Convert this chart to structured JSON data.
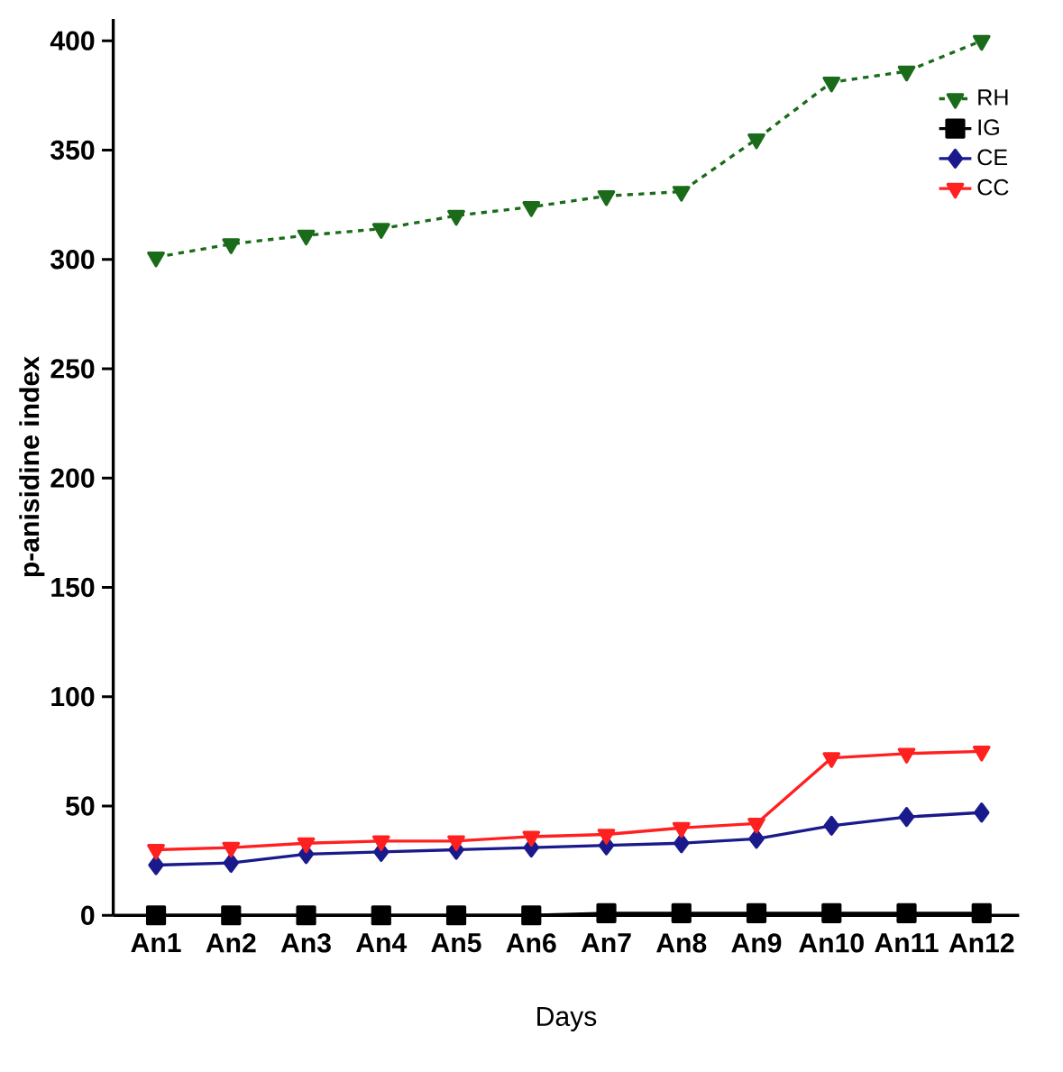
{
  "chart_data": {
    "type": "line",
    "xlabel": "Days",
    "ylabel": "p-anisidine index",
    "categories": [
      "An1",
      "An2",
      "An3",
      "An4",
      "An5",
      "An6",
      "An7",
      "An8",
      "An9",
      "An10",
      "An11",
      "An12"
    ],
    "ylim": [
      0,
      410
    ],
    "yticks": [
      0,
      50,
      100,
      150,
      200,
      250,
      300,
      350,
      400
    ],
    "grid": false,
    "legend": "top right",
    "series": [
      {
        "name": "RH",
        "color": "#1a6b1a",
        "marker": "triangle-down",
        "line_style": "dashed",
        "values": [
          301,
          307,
          311,
          314,
          320,
          324,
          329,
          331,
          355,
          381,
          386,
          400
        ]
      },
      {
        "name": "IG",
        "color": "#000000",
        "marker": "square",
        "line_style": "solid",
        "values": [
          0,
          0,
          0,
          0,
          0,
          0,
          1,
          1,
          1,
          1,
          1,
          1
        ]
      },
      {
        "name": "CE",
        "color": "#1a1a8c",
        "marker": "diamond",
        "line_style": "solid",
        "values": [
          23,
          24,
          28,
          29,
          30,
          31,
          32,
          33,
          35,
          41,
          45,
          47
        ]
      },
      {
        "name": "CC",
        "color": "#ff2020",
        "marker": "triangle-down",
        "line_style": "solid",
        "values": [
          30,
          31,
          33,
          34,
          34,
          36,
          37,
          40,
          42,
          72,
          74,
          75
        ]
      }
    ]
  }
}
